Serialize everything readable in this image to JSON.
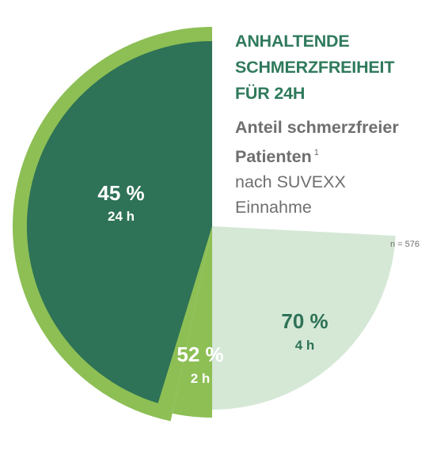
{
  "title_lines": [
    "ANHALTENDE",
    "SCHMERZFREIHEIT",
    "FÜR 24H"
  ],
  "subtitle": {
    "bold_line1": "Anteil schmerzfreier",
    "bold_line2": "Patienten",
    "footnote_mark": "1",
    "line3": "nach SUVEXX",
    "line4": "Einnahme"
  },
  "sample_size": "n = 576",
  "colors": {
    "dark_green": "#2e7257",
    "mid_green": "#8dbf55",
    "light_green": "#d5e8d6",
    "title_green": "#2f7a5c",
    "gray_text": "#6f6f6f"
  },
  "chart_data": {
    "type": "pie",
    "series_note": "Cumulative share of pain-free patients after intake",
    "slices": [
      {
        "time": "24 h",
        "percent_label": "45 %",
        "value": 45,
        "color": "#2e7257",
        "label_color": "#ffffff"
      },
      {
        "time": "2 h",
        "percent_label": "52 %",
        "value": 52,
        "color": "#8dbf55",
        "label_color": "#ffffff"
      },
      {
        "time": "4 h",
        "percent_label": "70 %",
        "value": 70,
        "color": "#d5e8d6",
        "label_color": "#2e7257"
      }
    ]
  }
}
